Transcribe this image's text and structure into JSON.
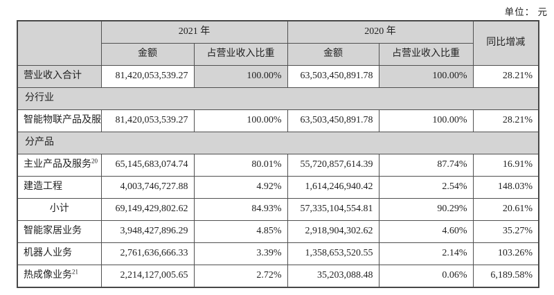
{
  "page": {
    "unit_label": "单位： 元"
  },
  "table": {
    "headers": {
      "year_2021": "2021 年",
      "year_2020": "2020 年",
      "yoy": "同比增减",
      "amount": "金额",
      "share": "占营业收入比重"
    },
    "rows": [
      {
        "kind": "data",
        "label": "营业收入合计",
        "sup": "",
        "label_center": false,
        "shaded": true,
        "amount_2021": "81,420,053,539.27",
        "share_2021": "100.00%",
        "amount_2020": "63,503,450,891.78",
        "share_2020": "100.00%",
        "yoy": "28.21%"
      },
      {
        "kind": "section",
        "label": "分行业"
      },
      {
        "kind": "data",
        "label": "智能物联产品及服务",
        "sup": "",
        "label_center": false,
        "shaded": false,
        "amount_2021": "81,420,053,539.27",
        "share_2021": "100.00%",
        "amount_2020": "63,503,450,891.78",
        "share_2020": "100.00%",
        "yoy": "28.21%"
      },
      {
        "kind": "section",
        "label": "分产品"
      },
      {
        "kind": "data",
        "label": "主业产品及服务",
        "sup": "20",
        "label_center": false,
        "shaded": false,
        "amount_2021": "65,145,683,074.74",
        "share_2021": "80.01%",
        "amount_2020": "55,720,857,614.39",
        "share_2020": "87.74%",
        "yoy": "16.91%"
      },
      {
        "kind": "data",
        "label": "建造工程",
        "sup": "",
        "label_center": false,
        "shaded": false,
        "amount_2021": "4,003,746,727.88",
        "share_2021": "4.92%",
        "amount_2020": "1,614,246,940.42",
        "share_2020": "2.54%",
        "yoy": "148.03%"
      },
      {
        "kind": "data",
        "label": "小计",
        "sup": "",
        "label_center": true,
        "shaded": false,
        "amount_2021": "69,149,429,802.62",
        "share_2021": "84.93%",
        "amount_2020": "57,335,104,554.81",
        "share_2020": "90.29%",
        "yoy": "20.61%"
      },
      {
        "kind": "data",
        "label": "智能家居业务",
        "sup": "",
        "label_center": false,
        "shaded": false,
        "amount_2021": "3,948,427,896.29",
        "share_2021": "4.85%",
        "amount_2020": "2,918,904,302.62",
        "share_2020": "4.60%",
        "yoy": "35.27%"
      },
      {
        "kind": "data",
        "label": "机器人业务",
        "sup": "",
        "label_center": false,
        "shaded": false,
        "amount_2021": "2,761,636,666.33",
        "share_2021": "3.39%",
        "amount_2020": "1,358,653,520.55",
        "share_2020": "2.14%",
        "yoy": "103.26%"
      },
      {
        "kind": "data",
        "label": "热成像业务",
        "sup": "21",
        "label_center": false,
        "shaded": false,
        "amount_2021": "2,214,127,005.65",
        "share_2021": "2.72%",
        "amount_2020": "35,203,088.48",
        "share_2020": "0.06%",
        "yoy": "6,189.58%"
      }
    ]
  }
}
